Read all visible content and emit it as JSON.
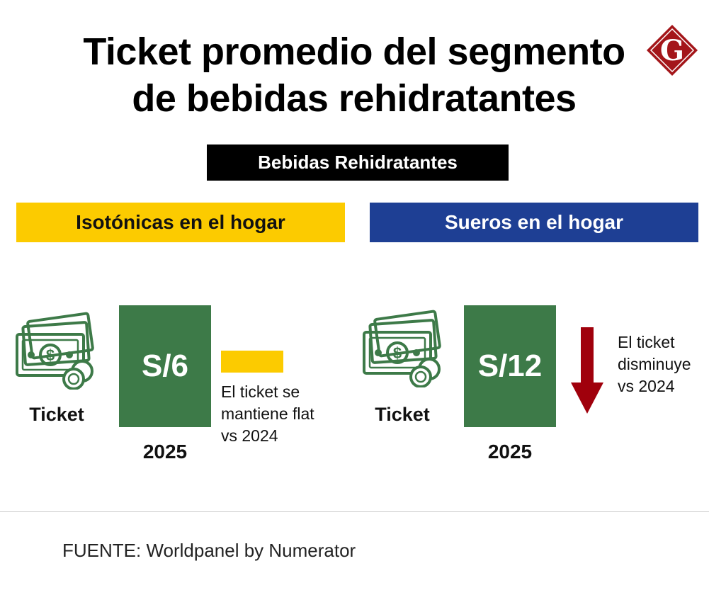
{
  "title_line1": "Ticket promedio del segmento",
  "title_line2": "de bebidas rehidratantes",
  "logo_letter": "G",
  "section_label": "Bebidas Rehidratantes",
  "categories": [
    {
      "name": "Isotónicas en el hogar",
      "color": "#fccb00",
      "ticket_label": "Ticket",
      "value": "S/6",
      "year": "2025",
      "trend": "flat",
      "note": [
        "El ticket se",
        "mantiene flat",
        "vs 2024"
      ]
    },
    {
      "name": "Sueros en el hogar",
      "color": "#1e3f94",
      "ticket_label": "Ticket",
      "value": "S/12",
      "year": "2025",
      "trend": "down",
      "note": [
        "El ticket",
        "disminuye",
        "vs 2024"
      ]
    }
  ],
  "colors": {
    "value_box": "#3d7a48",
    "down_arrow": "#a0000c",
    "icon": "#3d7a48"
  },
  "icons": {
    "money": "money-bills-coins-icon",
    "down": "down-arrow-icon",
    "logo": "diamond-logo-icon"
  },
  "source": "FUENTE: Worldpanel by Numerator"
}
